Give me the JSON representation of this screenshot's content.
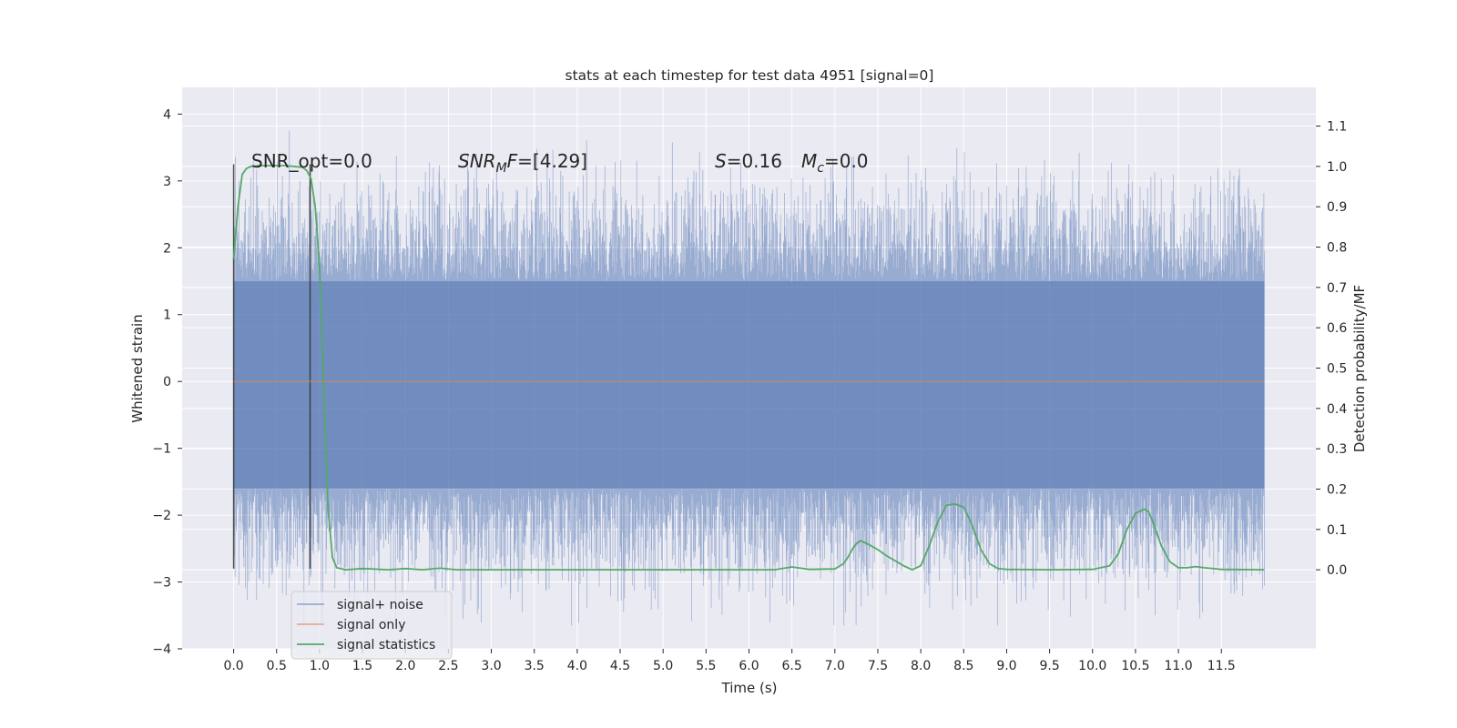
{
  "chart_data": {
    "type": "line",
    "title": "stats at each timestep for test data 4951 [signal=0]",
    "xlabel": "Time (s)",
    "ylabel": "Whitened strain",
    "ylabel_right": "Detection probability/MF",
    "xlim": [
      -0.6,
      12.6
    ],
    "ylim": [
      -4.0,
      4.4
    ],
    "ylim_right": [
      -0.196,
      1.196
    ],
    "x_ticks": [
      "0.0",
      "0.5",
      "1.0",
      "1.5",
      "2.0",
      "2.5",
      "3.0",
      "3.5",
      "4.0",
      "4.5",
      "5.0",
      "5.5",
      "6.0",
      "6.5",
      "7.0",
      "7.5",
      "8.0",
      "8.5",
      "9.0",
      "9.5",
      "10.0",
      "10.5",
      "11.0",
      "11.5"
    ],
    "y_ticks": [
      "4",
      "3",
      "2",
      "1",
      "0",
      "−1",
      "−2",
      "−3",
      "−4"
    ],
    "y_right_ticks": [
      "1.1",
      "1.0",
      "0.9",
      "0.8",
      "0.7",
      "0.6",
      "0.5",
      "0.4",
      "0.3",
      "0.2",
      "0.1",
      "0.0"
    ],
    "grid": true,
    "legend_position": "lower-left",
    "annotations": {
      "snr_opt": "SNR_opt=0.0",
      "snr_mf_var": "SNR",
      "snr_mf_sub": "M",
      "snr_mf_rest": "F=[4.29]",
      "s_var": "S",
      "s_rest": "=0.16",
      "mc_var": "M",
      "mc_sub": "c",
      "mc_rest": "=0.0"
    },
    "vertical_markers": [
      0.0,
      0.89
    ],
    "series": [
      {
        "name": "signal+ noise",
        "color": "#4c72b0",
        "alpha": 0.5,
        "x_range": [
          0.0,
          12.0
        ],
        "envelope_upper": 1.5,
        "envelope_lower": -1.6,
        "max": 4.1,
        "min": -3.65
      },
      {
        "name": "signal only",
        "color": "#dd8452",
        "x": [
          0.0,
          12.0
        ],
        "y": [
          0.0,
          0.0
        ]
      },
      {
        "name": "signal statistics",
        "color": "#55a868",
        "axis": "right",
        "x": [
          0.0,
          0.05,
          0.1,
          0.15,
          0.2,
          0.3,
          0.4,
          0.5,
          0.6,
          0.7,
          0.8,
          0.85,
          0.9,
          0.95,
          1.0,
          1.05,
          1.1,
          1.15,
          1.2,
          1.3,
          1.5,
          1.6,
          1.8,
          2.0,
          2.2,
          2.4,
          2.6,
          3.0,
          4.0,
          5.0,
          6.0,
          6.3,
          6.5,
          6.6,
          6.7,
          7.0,
          7.1,
          7.15,
          7.2,
          7.25,
          7.3,
          7.4,
          7.5,
          7.6,
          7.8,
          7.9,
          8.0,
          8.1,
          8.2,
          8.3,
          8.4,
          8.5,
          8.6,
          8.7,
          8.8,
          8.9,
          9.0,
          9.5,
          10.0,
          10.2,
          10.3,
          10.4,
          10.5,
          10.6,
          10.65,
          10.7,
          10.8,
          10.9,
          11.0,
          11.1,
          11.2,
          11.3,
          11.5,
          12.0
        ],
        "y": [
          0.77,
          0.9,
          0.98,
          0.995,
          1.0,
          1.002,
          1.002,
          1.002,
          1.002,
          1.0,
          0.998,
          0.99,
          0.97,
          0.9,
          0.75,
          0.45,
          0.15,
          0.03,
          0.005,
          0.0,
          0.003,
          0.002,
          0.0,
          0.003,
          0.0,
          0.004,
          0.0,
          0.0,
          0.0,
          0.0,
          0.0,
          0.0,
          0.007,
          0.004,
          0.001,
          0.002,
          0.015,
          0.03,
          0.05,
          0.065,
          0.072,
          0.062,
          0.05,
          0.035,
          0.01,
          0.0,
          0.01,
          0.06,
          0.12,
          0.16,
          0.163,
          0.155,
          0.11,
          0.05,
          0.015,
          0.003,
          0.001,
          0.0,
          0.001,
          0.01,
          0.04,
          0.1,
          0.14,
          0.15,
          0.145,
          0.12,
          0.06,
          0.02,
          0.005,
          0.005,
          0.008,
          0.005,
          0.001,
          0.0
        ]
      }
    ]
  }
}
